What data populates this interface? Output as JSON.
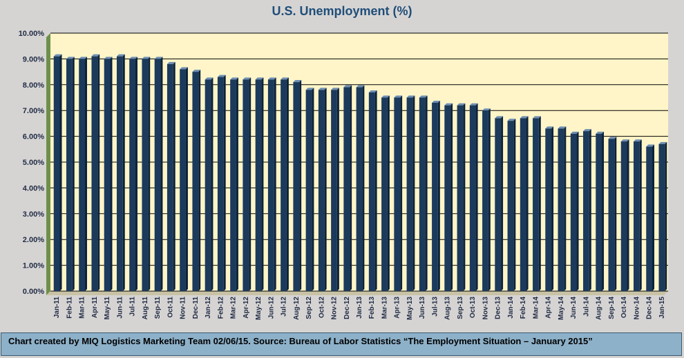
{
  "chart_data": {
    "type": "bar",
    "title": "U.S. Unemployment (%)",
    "xlabel": "",
    "ylabel": "",
    "ylim": [
      0,
      10
    ],
    "y_tick_format": "percent_2dp",
    "y_ticks": [
      "0.00%",
      "1.00%",
      "2.00%",
      "3.00%",
      "4.00%",
      "5.00%",
      "6.00%",
      "7.00%",
      "8.00%",
      "9.00%",
      "10.00%"
    ],
    "grid": true,
    "legend": "none",
    "categories": [
      "Jan-11",
      "Feb-11",
      "Mar-11",
      "Apr-11",
      "May-11",
      "Jun-11",
      "Jul-11",
      "Aug-11",
      "Sep-11",
      "Oct-11",
      "Nov-11",
      "Dec-11",
      "Jan-12",
      "Feb-12",
      "Mar-12",
      "Apr-12",
      "May-12",
      "Jun-12",
      "Jul-12",
      "Aug-12",
      "Sep-12",
      "Oct-12",
      "Nov-12",
      "Dec-12",
      "Jan-13",
      "Feb-13",
      "Mar-13",
      "Apr-13",
      "May-13",
      "Jun-13",
      "Jul-13",
      "Aug-13",
      "Sep-13",
      "Oct-13",
      "Nov-13",
      "Dec-13",
      "Jan-14",
      "Feb-14",
      "Mar-14",
      "Apr-14",
      "May-14",
      "Jun-14",
      "Jul-14",
      "Aug-14",
      "Sep-14",
      "Oct-14",
      "Nov-14",
      "Dec-14",
      "Jan-15"
    ],
    "values": [
      9.1,
      9.0,
      9.0,
      9.1,
      9.0,
      9.1,
      9.0,
      9.0,
      9.0,
      8.8,
      8.6,
      8.5,
      8.2,
      8.3,
      8.2,
      8.2,
      8.2,
      8.2,
      8.2,
      8.1,
      7.8,
      7.8,
      7.8,
      7.9,
      7.9,
      7.7,
      7.5,
      7.5,
      7.5,
      7.5,
      7.3,
      7.2,
      7.2,
      7.2,
      7.0,
      6.7,
      6.6,
      6.7,
      6.7,
      6.3,
      6.3,
      6.1,
      6.2,
      6.1,
      5.9,
      5.8,
      5.8,
      5.6,
      5.7
    ],
    "colors": {
      "bar": "#1b3a5c",
      "bar_edge": "#0d2238",
      "plot_background": "#fff5c8",
      "page_background": "#d6d4d3",
      "grid": "#000000",
      "title": "#1f4e79",
      "wall_side": "#6e8f4a"
    }
  },
  "footer": {
    "text": "Chart created by MIQ Logistics Marketing Team 02/06/15. Source: Bureau of Labor Statistics “The Employment Situation – January 2015”"
  }
}
